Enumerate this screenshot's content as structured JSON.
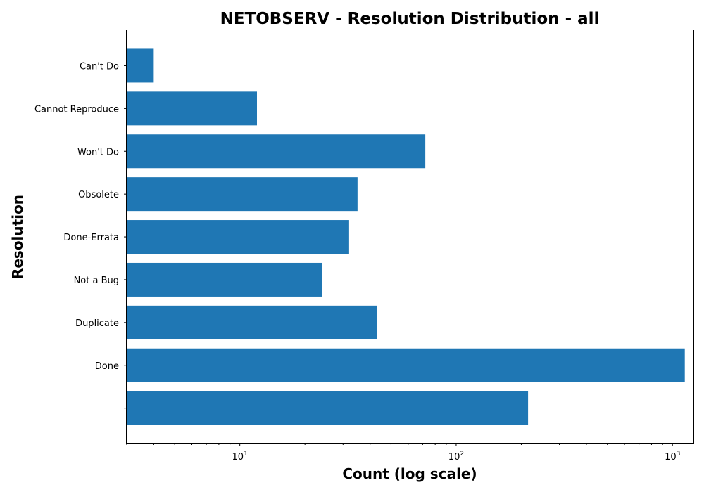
{
  "chart_data": {
    "type": "bar",
    "orientation": "horizontal",
    "title": "NETOBSERV - Resolution Distribution - all",
    "xlabel": "Count (log scale)",
    "ylabel": "Resolution",
    "x_scale": "log",
    "xlim": [
      3,
      1250
    ],
    "x_ticks": [
      {
        "value": 10,
        "base": "10",
        "exp": "1"
      },
      {
        "value": 100,
        "base": "10",
        "exp": "2"
      },
      {
        "value": 1000,
        "base": "10",
        "exp": "3"
      }
    ],
    "categories": [
      "",
      "Done",
      "Duplicate",
      "Not a Bug",
      "Done-Errata",
      "Obsolete",
      "Won't Do",
      "Cannot Reproduce",
      "Can't Do"
    ],
    "values": [
      215,
      1140,
      43,
      24,
      32,
      35,
      72,
      12,
      4
    ],
    "bar_color": "#1f77b4",
    "grid": false,
    "legend": "none"
  }
}
